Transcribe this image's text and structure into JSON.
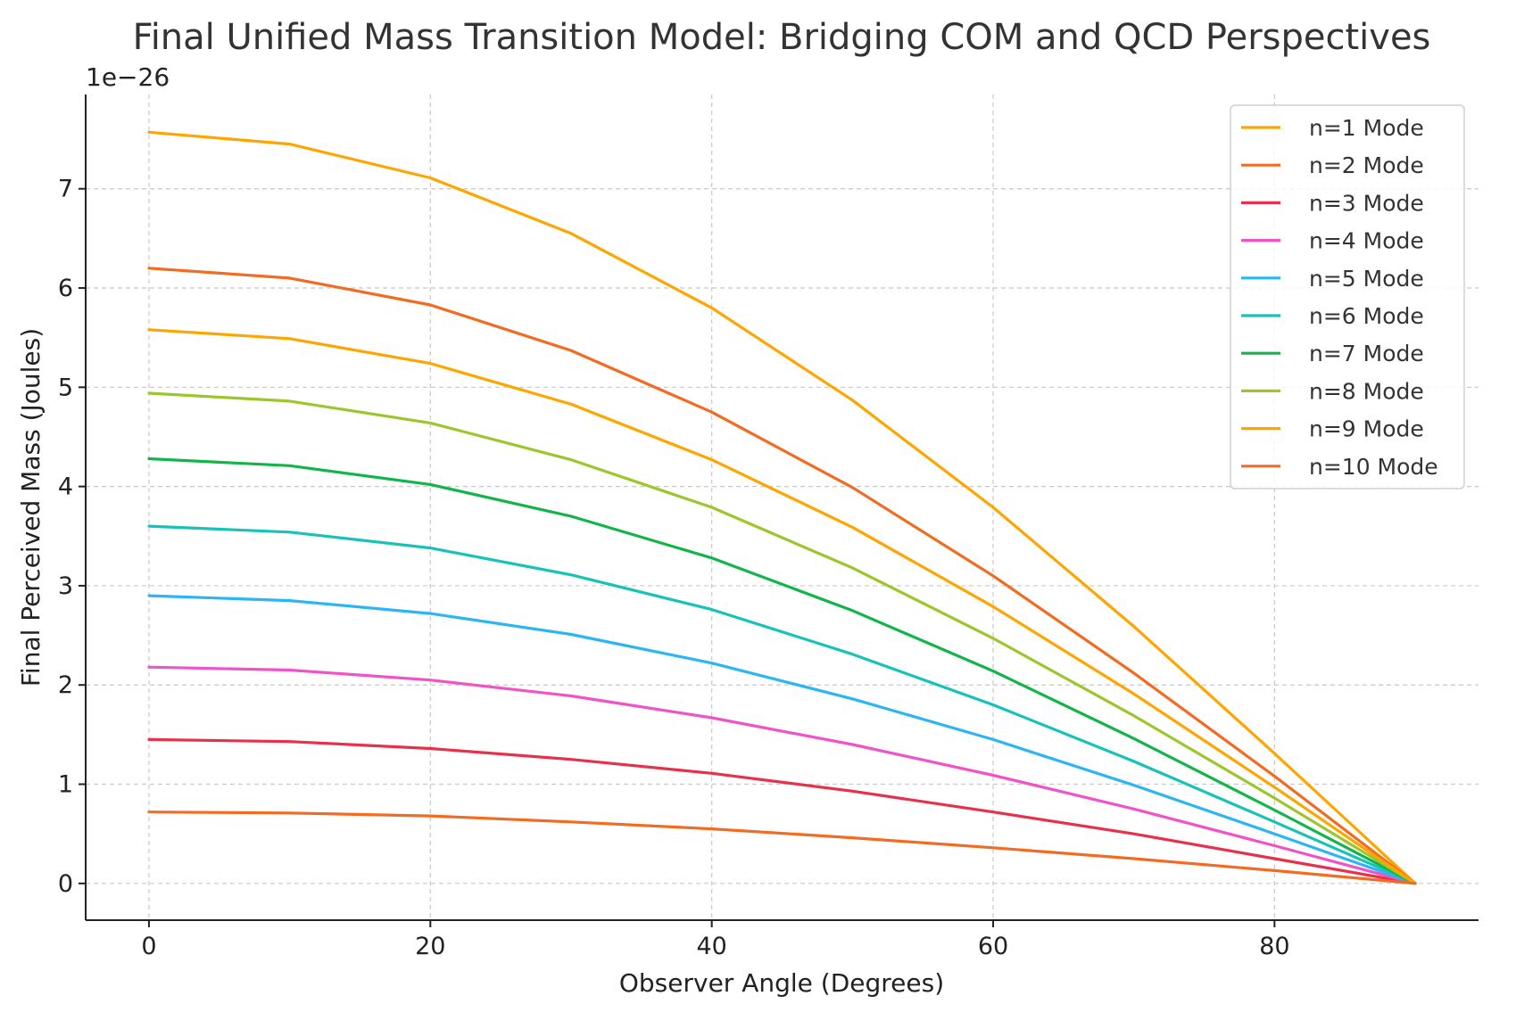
{
  "chart_data": {
    "type": "line",
    "title": "Final Unified Mass Transition Model: Bridging COM and QCD Perspectives",
    "xlabel": "Observer Angle (Degrees)",
    "ylabel": "Final Perceived Mass (Joules)",
    "y_offset_text": "1e−26",
    "y_scale_factor": 1e-26,
    "xlim": [
      -4.5,
      94.5
    ],
    "ylim": [
      -0.37,
      7.95
    ],
    "x_ticks": [
      0,
      20,
      40,
      60,
      80
    ],
    "x_tick_labels": [
      "0",
      "20",
      "40",
      "60",
      "80"
    ],
    "y_ticks": [
      0,
      1,
      2,
      3,
      4,
      5,
      6,
      7
    ],
    "y_tick_labels": [
      "0",
      "1",
      "2",
      "3",
      "4",
      "5",
      "6",
      "7"
    ],
    "grid": true,
    "legend_position": "top-right",
    "x": [
      0,
      10,
      20,
      30,
      40,
      50,
      60,
      70,
      80,
      90
    ],
    "series": [
      {
        "name": "n=1 Mode",
        "color": "#FFA500",
        "values": [
          7.57,
          7.45,
          7.11,
          6.55,
          5.8,
          4.87,
          3.79,
          2.59,
          1.31,
          0.0
        ]
      },
      {
        "name": "n=2 Mode",
        "color": "#F26B21",
        "values": [
          6.2,
          6.1,
          5.83,
          5.37,
          4.75,
          3.99,
          3.1,
          2.12,
          1.08,
          0.0
        ]
      },
      {
        "name": "n=3 Mode",
        "color": "#E8304A",
        "values": [
          1.45,
          1.43,
          1.36,
          1.25,
          1.11,
          0.93,
          0.72,
          0.5,
          0.25,
          0.0
        ]
      },
      {
        "name": "n=4 Mode",
        "color": "#F052C8",
        "values": [
          2.18,
          2.15,
          2.05,
          1.89,
          1.67,
          1.4,
          1.09,
          0.75,
          0.38,
          0.0
        ]
      },
      {
        "name": "n=5 Mode",
        "color": "#2BB5F5",
        "values": [
          2.9,
          2.85,
          2.72,
          2.51,
          2.22,
          1.86,
          1.45,
          0.99,
          0.5,
          0.0
        ]
      },
      {
        "name": "n=6 Mode",
        "color": "#17C3B8",
        "values": [
          3.6,
          3.54,
          3.38,
          3.11,
          2.76,
          2.31,
          1.8,
          1.23,
          0.62,
          0.0
        ]
      },
      {
        "name": "n=7 Mode",
        "color": "#12B54A",
        "values": [
          4.28,
          4.21,
          4.02,
          3.7,
          3.28,
          2.75,
          2.14,
          1.46,
          0.74,
          0.0
        ]
      },
      {
        "name": "n=8 Mode",
        "color": "#9CC62B",
        "values": [
          4.94,
          4.86,
          4.64,
          4.27,
          3.79,
          3.18,
          2.47,
          1.69,
          0.86,
          0.0
        ]
      },
      {
        "name": "n=9 Mode",
        "color": "#FFA500",
        "values": [
          5.58,
          5.49,
          5.24,
          4.83,
          4.27,
          3.59,
          2.79,
          1.91,
          0.97,
          0.0
        ]
      },
      {
        "name": "n=10 Mode",
        "color": "#F26B21",
        "values": [
          0.72,
          0.71,
          0.68,
          0.62,
          0.55,
          0.46,
          0.36,
          0.25,
          0.13,
          0.0
        ]
      }
    ]
  }
}
